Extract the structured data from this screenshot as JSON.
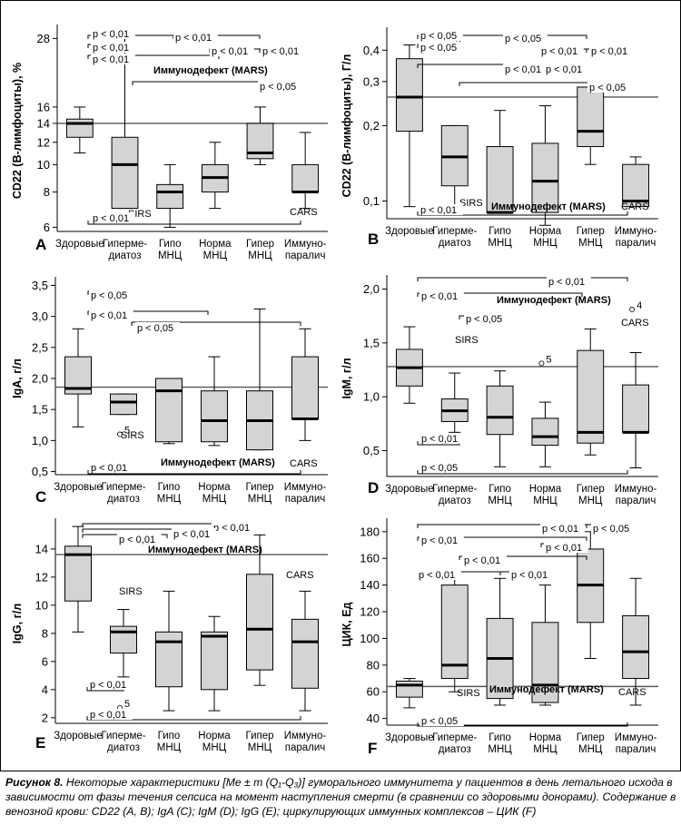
{
  "caption": {
    "label": "Рисунок 8.",
    "text": " Некоторые характеристики [Me ± m (Q₁-Q₃)] гуморального иммунитета у пациентов в день летального исхода в зависимости от фазы течения сепсиса на момент наступления смерти (в сравнении со здоровыми донорами). Содержание в венозной крови: CD22 (A, B); IgA (C); IgM (D); IgG (E); циркулирующих иммунных комплексов – ЦИК (F)"
  },
  "chart_data": [
    {
      "panel": "A",
      "type": "boxplot",
      "ylabel": "CD22 (В-лимфоциты), %",
      "yscale": "log",
      "ylim": [
        5.8,
        30
      ],
      "yticks": [
        6,
        8,
        10,
        12,
        14,
        16,
        28
      ],
      "categories": [
        "Здоровые",
        "Гиперме-\nдиатоз",
        "Гипо\nМНЦ",
        "Норма\nМНЦ",
        "Гипер\nМНЦ",
        "Иммуно-\nпаралич"
      ],
      "boxes": [
        {
          "whisker_low": 11,
          "q1": 12.5,
          "median": 14,
          "q3": 14.5,
          "whisker_high": 16
        },
        {
          "whisker_low": 7,
          "q1": 7,
          "median": 10,
          "q3": 12.5,
          "whisker_high": 28
        },
        {
          "whisker_low": 6,
          "q1": 7,
          "median": 8,
          "q3": 8.5,
          "whisker_high": 10
        },
        {
          "whisker_low": 7,
          "q1": 8,
          "median": 9,
          "q3": 10,
          "whisker_high": 12
        },
        {
          "whisker_low": 10,
          "q1": 10.5,
          "median": 11,
          "q3": 14,
          "whisker_high": 16
        },
        {
          "whisker_low": 7,
          "q1": 8,
          "median": 8,
          "q3": 10,
          "whisker_high": 13
        }
      ],
      "reference": 14,
      "annotations": [
        "p < 0,01",
        "p < 0,01",
        "p < 0,01",
        "p < 0,01",
        "p < 0,01",
        "p < 0,01",
        "Иммунодефект (MARS)",
        "p < 0,05",
        "SIRS",
        "CARS",
        "p < 0,01"
      ]
    },
    {
      "panel": "B",
      "type": "boxplot",
      "ylabel": "CD22 (В-лимфоциты), Г/л",
      "yscale": "log",
      "ylim": [
        0.085,
        0.47
      ],
      "yticks": [
        0.1,
        0.2,
        0.3,
        0.4
      ],
      "ytick_labels": [
        "0,1",
        "0,2",
        "0,3",
        "0,4"
      ],
      "categories": [
        "Здоровые",
        "Гиперме-\nдиатоз",
        "Гипо\nМНЦ",
        "Норма\nМНЦ",
        "Гипер\nМНЦ",
        "Иммуно-\nпаралич"
      ],
      "boxes": [
        {
          "whisker_low": 0.095,
          "q1": 0.19,
          "median": 0.26,
          "q3": 0.37,
          "whisker_high": 0.42
        },
        {
          "whisker_low": 0.095,
          "q1": 0.115,
          "median": 0.15,
          "q3": 0.2,
          "whisker_high": 0.2
        },
        {
          "whisker_low": 0.09,
          "q1": 0.09,
          "median": 0.09,
          "q3": 0.165,
          "whisker_high": 0.23
        },
        {
          "whisker_low": 0.08,
          "q1": 0.09,
          "median": 0.12,
          "q3": 0.17,
          "whisker_high": 0.24
        },
        {
          "whisker_low": 0.14,
          "q1": 0.165,
          "median": 0.19,
          "q3": 0.285,
          "whisker_high": 0.285
        },
        {
          "whisker_low": 0.095,
          "q1": 0.095,
          "median": 0.1,
          "q3": 0.14,
          "whisker_high": 0.15
        }
      ],
      "outliers": [
        {
          "box": 1,
          "y": 0.41,
          "label": "3"
        }
      ],
      "reference": 0.26,
      "annotations": [
        "p < 0,05",
        "p < 0,05",
        "p < 0,05",
        "p < 0,01",
        "p < 0,01",
        "p < 0,01",
        "p < 0,01",
        "p < 0,05",
        "SIRS",
        "Иммунодефект (MARS)",
        "CARS",
        "p < 0,01"
      ]
    },
    {
      "panel": "C",
      "type": "boxplot",
      "ylabel": "IgA, г/л",
      "yscale": "linear",
      "ylim": [
        0.45,
        3.55
      ],
      "yticks": [
        0.5,
        1.0,
        1.5,
        2.0,
        2.5,
        3.0,
        3.5
      ],
      "ytick_labels": [
        "0,5",
        "1,0",
        "1,5",
        "2,0",
        "2,5",
        "3,0",
        "3,5"
      ],
      "categories": [
        "Здоровые",
        "Гиперме-\nдиатоз",
        "Гипо\nМНЦ",
        "Норма\nМНЦ",
        "Гипер\nМНЦ",
        "Иммуно-\nпаралич"
      ],
      "boxes": [
        {
          "whisker_low": 1.22,
          "q1": 1.75,
          "median": 1.84,
          "q3": 2.35,
          "whisker_high": 2.8
        },
        {
          "whisker_low": 1.42,
          "q1": 1.42,
          "median": 1.62,
          "q3": 1.75,
          "whisker_high": 1.75
        },
        {
          "whisker_low": 0.95,
          "q1": 0.98,
          "median": 1.8,
          "q3": 2.0,
          "whisker_high": 2.0
        },
        {
          "whisker_low": 0.92,
          "q1": 0.98,
          "median": 1.32,
          "q3": 1.8,
          "whisker_high": 2.35
        },
        {
          "whisker_low": 0.85,
          "q1": 0.85,
          "median": 1.32,
          "q3": 1.8,
          "whisker_high": 3.12
        },
        {
          "whisker_low": 1.0,
          "q1": 1.35,
          "median": 1.35,
          "q3": 2.35,
          "whisker_high": 2.8
        }
      ],
      "outliers": [
        {
          "box": 1,
          "y": 1.1,
          "label": "5"
        }
      ],
      "reference": 1.86,
      "annotations": [
        "p < 0,05",
        "p < 0,01",
        "p < 0,05",
        "SIRS",
        "Иммунодефект (MARS)",
        "CARS",
        "p < 0,01"
      ]
    },
    {
      "panel": "D",
      "type": "boxplot",
      "ylabel": "IgM, г/л",
      "yscale": "linear",
      "ylim": [
        0.26,
        2.08
      ],
      "yticks": [
        0.5,
        1.0,
        1.5,
        2.0
      ],
      "ytick_labels": [
        "0,5",
        "1,0",
        "1,5",
        "2,0"
      ],
      "categories": [
        "Здоровые",
        "Гиперме-\nдиатоз",
        "Гипо\nМНЦ",
        "Норма\nМНЦ",
        "Гипер\nМНЦ",
        "Иммуно-\nпаралич"
      ],
      "boxes": [
        {
          "whisker_low": 0.94,
          "q1": 1.1,
          "median": 1.27,
          "q3": 1.44,
          "whisker_high": 1.65
        },
        {
          "whisker_low": 0.67,
          "q1": 0.77,
          "median": 0.87,
          "q3": 0.98,
          "whisker_high": 1.22
        },
        {
          "whisker_low": 0.35,
          "q1": 0.65,
          "median": 0.81,
          "q3": 1.1,
          "whisker_high": 1.24
        },
        {
          "whisker_low": 0.35,
          "q1": 0.55,
          "median": 0.63,
          "q3": 0.8,
          "whisker_high": 0.95
        },
        {
          "whisker_low": 0.46,
          "q1": 0.57,
          "median": 0.67,
          "q3": 1.43,
          "whisker_high": 1.63
        },
        {
          "whisker_low": 0.34,
          "q1": 0.67,
          "median": 0.67,
          "q3": 1.11,
          "whisker_high": 1.41
        }
      ],
      "outliers": [
        {
          "box": 1,
          "y": 0.32,
          "label": "5"
        },
        {
          "box": 3,
          "y": 1.31,
          "label": "5"
        },
        {
          "box": 5,
          "y": 1.81,
          "label": "4"
        }
      ],
      "reference": 1.28,
      "annotations": [
        "p < 0,01",
        "p < 0,01",
        "Иммунодефект (MARS)",
        "p < 0,05",
        "SIRS",
        "CARS",
        "p < 0,01",
        "p < 0,05"
      ]
    },
    {
      "panel": "E",
      "type": "boxplot",
      "ylabel": "IgG, г/л",
      "yscale": "linear",
      "ylim": [
        1.6,
        15.8
      ],
      "yticks": [
        2,
        4,
        6,
        8,
        10,
        12,
        14
      ],
      "categories": [
        "Здоровые",
        "Гиперме-\nдиатоз",
        "Гипо\nМНЦ",
        "Норма\nМНЦ",
        "Гипер\nМНЦ",
        "Иммуно-\nпаралич"
      ],
      "boxes": [
        {
          "whisker_low": 8.1,
          "q1": 10.3,
          "median": 13.6,
          "q3": 14.2,
          "whisker_high": 15.6
        },
        {
          "whisker_low": 4.9,
          "q1": 6.6,
          "median": 8.1,
          "q3": 8.5,
          "whisker_high": 9.7
        },
        {
          "whisker_low": 2.5,
          "q1": 4.2,
          "median": 7.4,
          "q3": 8.1,
          "whisker_high": 11.0
        },
        {
          "whisker_low": 2.5,
          "q1": 4.0,
          "median": 7.8,
          "q3": 8.1,
          "whisker_high": 9.2
        },
        {
          "whisker_low": 4.3,
          "q1": 5.4,
          "median": 8.3,
          "q3": 12.2,
          "whisker_high": 15.0
        },
        {
          "whisker_low": 2.5,
          "q1": 4.1,
          "median": 7.4,
          "q3": 9.0,
          "whisker_high": 11.0
        }
      ],
      "outliers": [
        {
          "box": 1,
          "y": 2.7,
          "label": "5"
        }
      ],
      "reference": 13.6,
      "annotations": [
        "p < 0,01",
        "p < 0,01",
        "p < 0,01",
        "Иммунодефект (MARS)",
        "SIRS",
        "CARS",
        "p < 0,01",
        "p < 0,01"
      ]
    },
    {
      "panel": "F",
      "type": "boxplot",
      "ylabel": "ЦИК, Ед",
      "yscale": "linear",
      "ylim": [
        35,
        186
      ],
      "yticks": [
        40,
        60,
        80,
        100,
        120,
        140,
        160,
        180
      ],
      "categories": [
        "Здоровые",
        "Гиперме-\nдиатоз",
        "Гипо\nМНЦ",
        "Норма\nМНЦ",
        "Гипер\nМНЦ",
        "Иммуно-\nпаралич"
      ],
      "boxes": [
        {
          "whisker_low": 48,
          "q1": 56,
          "median": 65,
          "q3": 68,
          "whisker_high": 70
        },
        {
          "whisker_low": 60,
          "q1": 70,
          "median": 80,
          "q3": 140,
          "whisker_high": 145
        },
        {
          "whisker_low": 50,
          "q1": 55,
          "median": 85,
          "q3": 115,
          "whisker_high": 145
        },
        {
          "whisker_low": 50,
          "q1": 52,
          "median": 65,
          "q3": 112,
          "whisker_high": 140
        },
        {
          "whisker_low": 85,
          "q1": 112,
          "median": 140,
          "q3": 167,
          "whisker_high": 180
        },
        {
          "whisker_low": 50,
          "q1": 70,
          "median": 90,
          "q3": 117,
          "whisker_high": 145
        }
      ],
      "reference": 64,
      "annotations": [
        "p < 0,01",
        "p < 0,05",
        "p < 0,01",
        "p < 0,01",
        "p < 0,01",
        "p < 0,01",
        "p < 0,01",
        "SIRS",
        "Иммунодефект (MARS)",
        "CARS",
        "p < 0,05"
      ]
    }
  ]
}
